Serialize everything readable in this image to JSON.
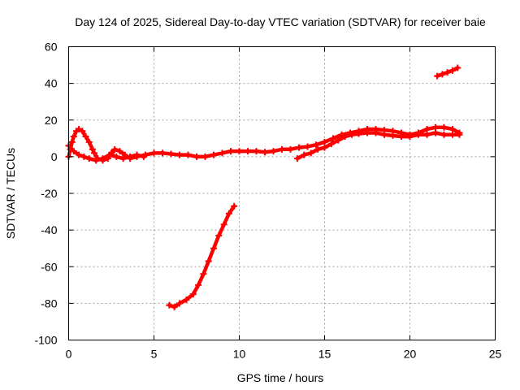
{
  "chart_data": {
    "type": "scatter",
    "title": "Day 124 of 2025, Sidereal Day-to-day VTEC variation (SDTVAR) for receiver baie",
    "xlabel": "GPS time / hours",
    "ylabel": "SDTVAR / TECUs",
    "xlim": [
      0,
      25
    ],
    "ylim": [
      -100,
      60
    ],
    "xticks": [
      0,
      5,
      10,
      15,
      20,
      25
    ],
    "yticks": [
      -100,
      -80,
      -60,
      -40,
      -20,
      0,
      20,
      40,
      60
    ],
    "grid": true,
    "series_color": "#ff0000",
    "series": [
      {
        "name": "main-trace",
        "points": [
          [
            0.0,
            0
          ],
          [
            0.1,
            4
          ],
          [
            0.2,
            8
          ],
          [
            0.3,
            11
          ],
          [
            0.45,
            14
          ],
          [
            0.6,
            15
          ],
          [
            0.8,
            14
          ],
          [
            1.0,
            11
          ],
          [
            1.2,
            8
          ],
          [
            1.4,
            4
          ],
          [
            1.5,
            2
          ],
          [
            1.7,
            -1
          ],
          [
            2.0,
            -2
          ],
          [
            2.3,
            -1
          ],
          [
            2.5,
            2
          ],
          [
            2.7,
            4
          ],
          [
            3.0,
            3
          ],
          [
            3.3,
            1
          ],
          [
            3.6,
            -1
          ],
          [
            4.0,
            0
          ],
          [
            4.5,
            1
          ],
          [
            5.0,
            2
          ],
          [
            5.5,
            2
          ],
          [
            6.0,
            1.5
          ],
          [
            6.5,
            1
          ],
          [
            7.0,
            1
          ],
          [
            7.5,
            0
          ],
          [
            8.0,
            0
          ],
          [
            8.5,
            1
          ],
          [
            9.0,
            2
          ],
          [
            9.5,
            3
          ],
          [
            10.0,
            3
          ],
          [
            10.5,
            3
          ],
          [
            11.0,
            3
          ],
          [
            11.5,
            2.5
          ],
          [
            12.0,
            3
          ],
          [
            12.5,
            4
          ],
          [
            13.0,
            4
          ],
          [
            13.5,
            5
          ],
          [
            14.0,
            5.5
          ],
          [
            14.5,
            6.5
          ],
          [
            15.0,
            8
          ],
          [
            15.5,
            10
          ],
          [
            16.0,
            12
          ],
          [
            16.5,
            13
          ],
          [
            17.0,
            14
          ],
          [
            17.5,
            15
          ],
          [
            18.0,
            15
          ],
          [
            18.5,
            14.5
          ],
          [
            19.0,
            14
          ],
          [
            19.5,
            13
          ],
          [
            20.0,
            12
          ],
          [
            20.5,
            13
          ],
          [
            21.0,
            15
          ],
          [
            21.5,
            16
          ],
          [
            22.0,
            16
          ],
          [
            22.5,
            15
          ],
          [
            22.9,
            13
          ]
        ]
      },
      {
        "name": "lower-branch",
        "points": [
          [
            0.0,
            6
          ],
          [
            0.3,
            3
          ],
          [
            0.6,
            1
          ],
          [
            0.9,
            0
          ],
          [
            1.2,
            -1
          ],
          [
            1.6,
            -2
          ],
          [
            2.0,
            -1
          ],
          [
            2.4,
            1
          ],
          [
            2.8,
            0
          ],
          [
            3.2,
            -1
          ],
          [
            3.6,
            0
          ],
          [
            4.0,
            1
          ],
          [
            4.4,
            0
          ]
        ]
      },
      {
        "name": "evening-branch",
        "points": [
          [
            13.4,
            -1
          ],
          [
            13.8,
            1
          ],
          [
            14.2,
            2
          ],
          [
            14.6,
            4
          ],
          [
            15.0,
            5
          ],
          [
            15.4,
            7
          ],
          [
            15.8,
            9
          ],
          [
            16.2,
            11
          ],
          [
            16.6,
            12
          ],
          [
            17.0,
            12.5
          ],
          [
            17.5,
            13
          ],
          [
            18.0,
            13
          ],
          [
            18.5,
            12
          ],
          [
            19.0,
            11.5
          ],
          [
            19.5,
            11
          ],
          [
            20.0,
            11
          ],
          [
            20.5,
            12
          ],
          [
            21.0,
            12
          ],
          [
            21.5,
            13
          ],
          [
            22.0,
            12
          ],
          [
            22.5,
            12
          ],
          [
            22.9,
            12
          ]
        ]
      },
      {
        "name": "high-trace",
        "points": [
          [
            21.6,
            44
          ],
          [
            21.9,
            45
          ],
          [
            22.2,
            46
          ],
          [
            22.5,
            47
          ],
          [
            22.8,
            48.5
          ]
        ]
      },
      {
        "name": "falling-trace",
        "points": [
          [
            5.9,
            -81
          ],
          [
            6.2,
            -82
          ],
          [
            6.5,
            -80
          ],
          [
            6.9,
            -78
          ],
          [
            7.3,
            -75
          ],
          [
            7.6,
            -70
          ],
          [
            7.9,
            -64
          ],
          [
            8.2,
            -57
          ],
          [
            8.5,
            -50
          ],
          [
            8.8,
            -43
          ],
          [
            9.1,
            -37
          ],
          [
            9.4,
            -31
          ],
          [
            9.7,
            -27
          ]
        ]
      }
    ]
  }
}
